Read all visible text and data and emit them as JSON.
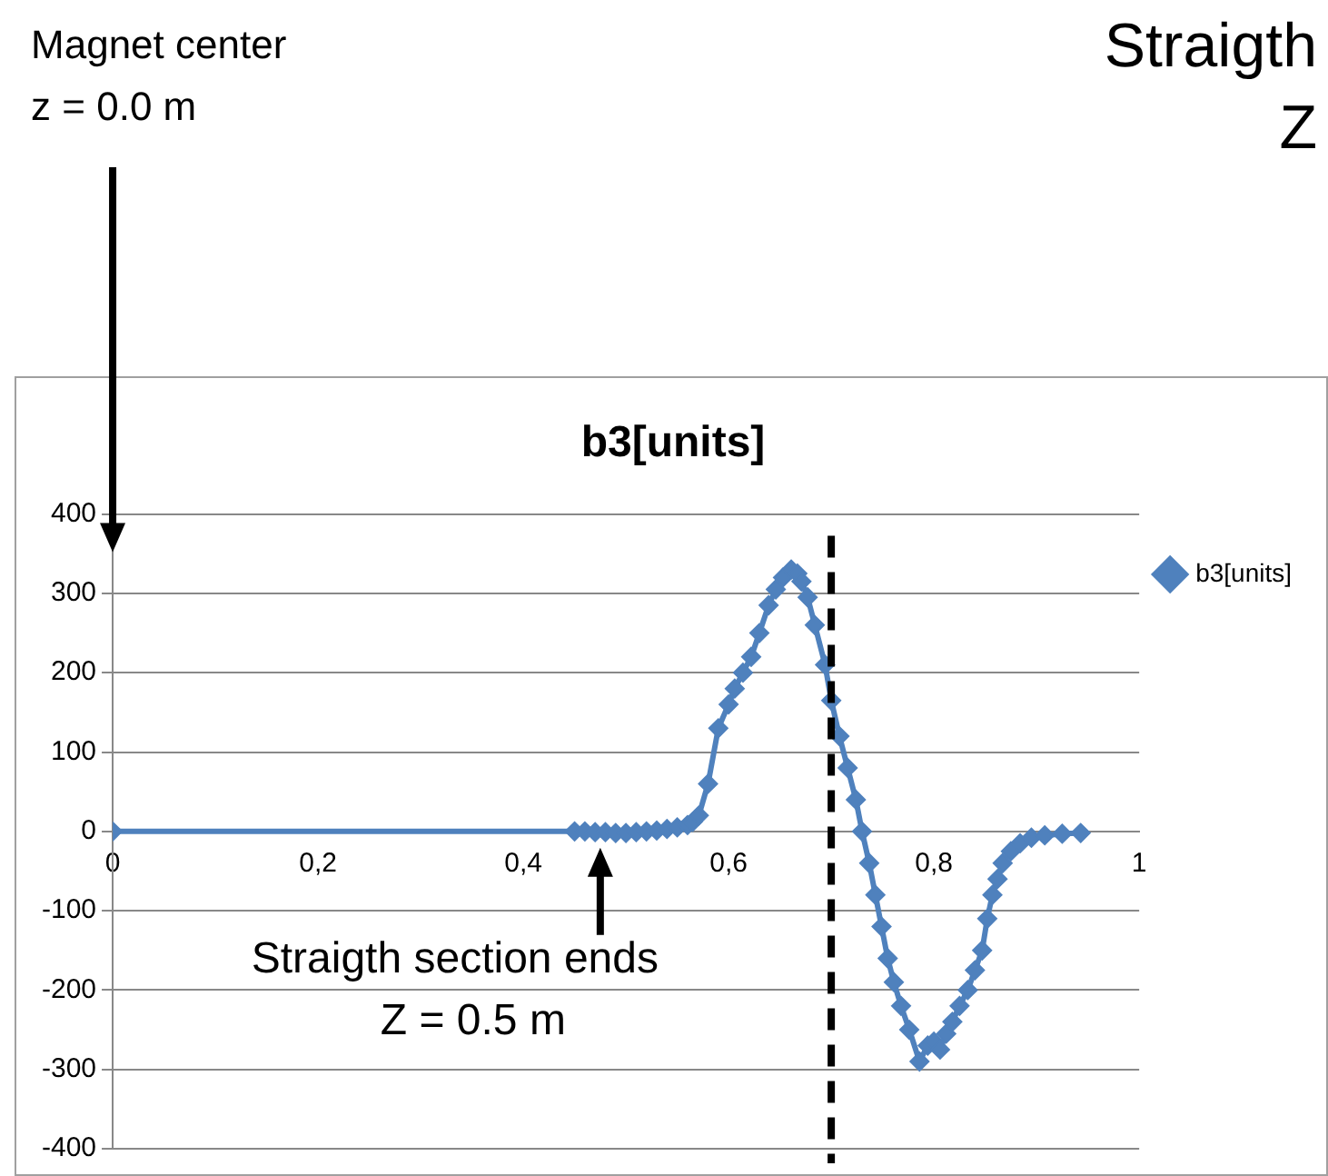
{
  "chart_data": {
    "type": "line",
    "title": "b3[units]",
    "x": [
      0,
      0.45,
      0.46,
      0.47,
      0.48,
      0.49,
      0.5,
      0.51,
      0.52,
      0.53,
      0.54,
      0.55,
      0.56,
      0.565,
      0.571,
      0.58,
      0.59,
      0.6,
      0.606,
      0.614,
      0.622,
      0.63,
      0.639,
      0.646,
      0.653,
      0.661,
      0.667,
      0.671,
      0.677,
      0.684,
      0.694,
      0.7,
      0.708,
      0.716,
      0.724,
      0.73,
      0.737,
      0.743,
      0.749,
      0.755,
      0.761,
      0.768,
      0.776,
      0.786,
      0.794,
      0.8,
      0.806,
      0.812,
      0.818,
      0.825,
      0.833,
      0.84,
      0.847,
      0.852,
      0.857,
      0.862,
      0.867,
      0.875,
      0.884,
      0.895,
      0.908,
      0.925,
      0.943
    ],
    "series": [
      {
        "name": "b3[units]",
        "color": "#4f81bd",
        "values": [
          0,
          0,
          0,
          -1,
          -1,
          -2,
          -2,
          -1,
          0,
          1,
          3,
          5,
          8,
          12,
          20,
          60,
          130,
          160,
          180,
          200,
          220,
          250,
          285,
          305,
          320,
          330,
          325,
          315,
          295,
          260,
          210,
          165,
          120,
          80,
          40,
          0,
          -40,
          -80,
          -120,
          -160,
          -190,
          -220,
          -250,
          -290,
          -270,
          -265,
          -275,
          -255,
          -240,
          -220,
          -200,
          -175,
          -150,
          -110,
          -80,
          -60,
          -40,
          -25,
          -15,
          -8,
          -5,
          -3,
          -2
        ]
      }
    ],
    "xlim": [
      0,
      1
    ],
    "xticks": [
      {
        "value": 0,
        "label": "0"
      },
      {
        "value": 0.2,
        "label": "0,2"
      },
      {
        "value": 0.4,
        "label": "0,4"
      },
      {
        "value": 0.6,
        "label": "0,6"
      },
      {
        "value": 0.8,
        "label": "0,8"
      },
      {
        "value": 1,
        "label": "1"
      }
    ],
    "ylim": [
      -400,
      400
    ],
    "yticks": [
      -400,
      -300,
      -200,
      -100,
      0,
      100,
      200,
      300,
      400
    ],
    "grid": "y",
    "legend": "right",
    "marker": "diamond",
    "line_style": "solid",
    "ref_lines": [
      {
        "axis": "x",
        "value": 0.7,
        "color": "#000000",
        "line_style": "dashed"
      }
    ],
    "annotations": [
      "Magnet center\nz = 0.0 m",
      "Straigth section ends\nZ = 0.5 m",
      "Straigth\nZ"
    ]
  }
}
